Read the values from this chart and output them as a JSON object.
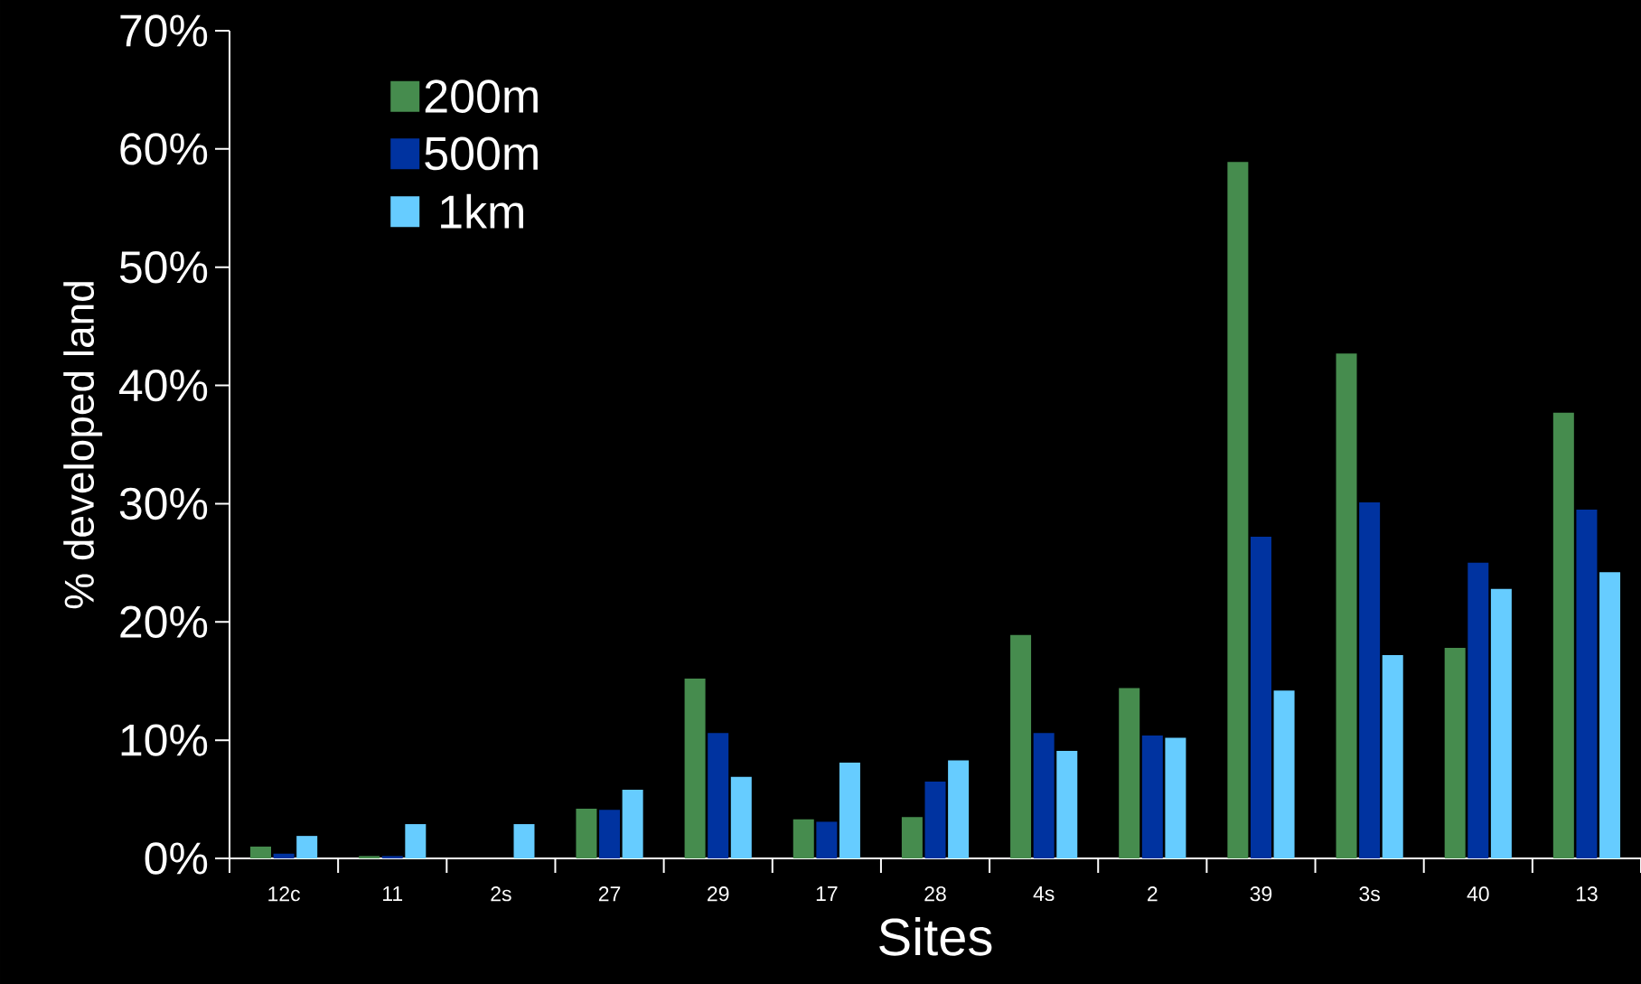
{
  "chart_data": {
    "type": "bar",
    "xlabel": "Sites",
    "ylabel": "% developed land",
    "categories": [
      "12c",
      "11",
      "2s",
      "27",
      "29",
      "17",
      "28",
      "4s",
      "2",
      "39",
      "3s",
      "40",
      "13"
    ],
    "series": [
      {
        "name": "200m",
        "color": "#468c4e",
        "values": [
          1.0,
          0.2,
          0,
          4.2,
          15.2,
          3.3,
          3.5,
          18.9,
          14.4,
          58.9,
          42.7,
          17.8,
          37.7
        ]
      },
      {
        "name": "500m",
        "color": "#0033a0",
        "values": [
          0.4,
          0.2,
          0,
          4.1,
          10.6,
          3.1,
          6.5,
          10.6,
          10.4,
          27.2,
          30.1,
          25.0,
          29.5
        ]
      },
      {
        "name": "1km",
        "color": "#66ccff",
        "values": [
          1.9,
          2.9,
          2.9,
          5.8,
          6.9,
          8.1,
          8.3,
          9.1,
          10.2,
          14.2,
          17.2,
          22.8,
          24.2
        ]
      }
    ],
    "ylim": [
      0,
      70
    ],
    "yticks": [
      {
        "value": 0,
        "label": "0%"
      },
      {
        "value": 10,
        "label": "10%"
      },
      {
        "value": 20,
        "label": "20%"
      },
      {
        "value": 30,
        "label": "30%"
      },
      {
        "value": 40,
        "label": "40%"
      },
      {
        "value": 50,
        "label": "50%"
      },
      {
        "value": 60,
        "label": "60%"
      },
      {
        "value": 70,
        "label": "70%"
      }
    ],
    "legend": "top left"
  }
}
